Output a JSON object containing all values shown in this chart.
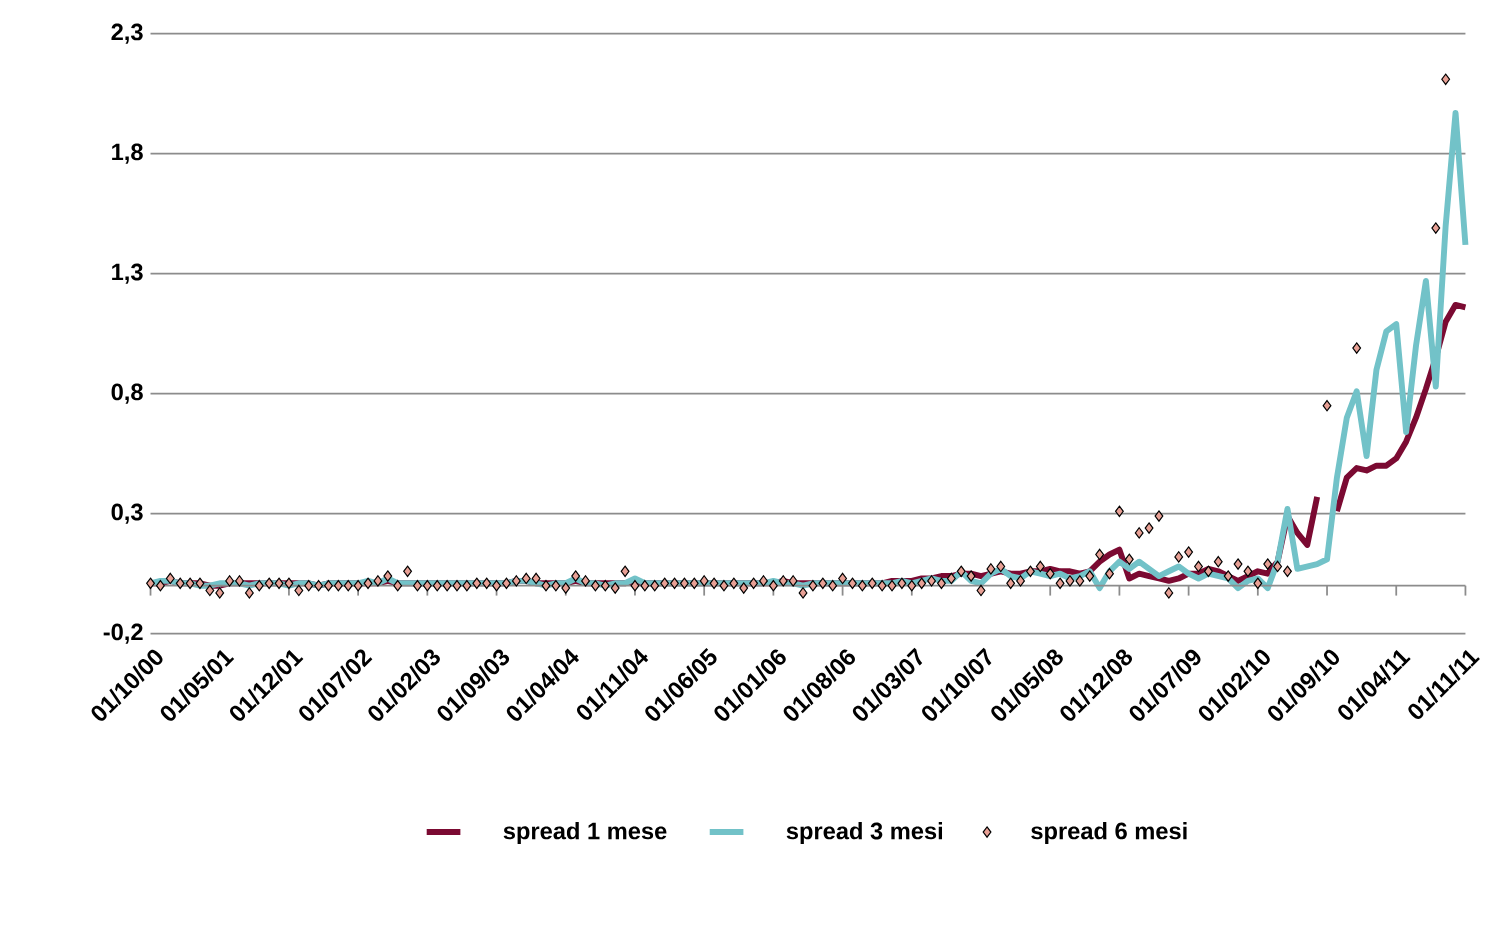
{
  "chart_data": {
    "type": "line",
    "x": [
      "2000-10-01",
      "2000-11-01",
      "2000-12-01",
      "2001-01-01",
      "2001-02-01",
      "2001-03-01",
      "2001-04-01",
      "2001-05-01",
      "2001-06-01",
      "2001-07-01",
      "2001-08-01",
      "2001-09-01",
      "2001-10-01",
      "2001-11-01",
      "2001-12-01",
      "2002-01-01",
      "2002-02-01",
      "2002-03-01",
      "2002-04-01",
      "2002-05-01",
      "2002-06-01",
      "2002-07-01",
      "2002-08-01",
      "2002-09-01",
      "2002-10-01",
      "2002-11-01",
      "2002-12-01",
      "2003-01-01",
      "2003-02-01",
      "2003-03-01",
      "2003-04-01",
      "2003-05-01",
      "2003-06-01",
      "2003-07-01",
      "2003-08-01",
      "2003-09-01",
      "2003-10-01",
      "2003-11-01",
      "2003-12-01",
      "2004-01-01",
      "2004-02-01",
      "2004-03-01",
      "2004-04-01",
      "2004-05-01",
      "2004-06-01",
      "2004-07-01",
      "2004-08-01",
      "2004-09-01",
      "2004-10-01",
      "2004-11-01",
      "2004-12-01",
      "2005-01-01",
      "2005-02-01",
      "2005-03-01",
      "2005-04-01",
      "2005-05-01",
      "2005-06-01",
      "2005-07-01",
      "2005-08-01",
      "2005-09-01",
      "2005-10-01",
      "2005-11-01",
      "2005-12-01",
      "2006-01-01",
      "2006-02-01",
      "2006-03-01",
      "2006-04-01",
      "2006-05-01",
      "2006-06-01",
      "2006-07-01",
      "2006-08-01",
      "2006-09-01",
      "2006-10-01",
      "2006-11-01",
      "2006-12-01",
      "2007-01-01",
      "2007-02-01",
      "2007-03-01",
      "2007-04-01",
      "2007-05-01",
      "2007-06-01",
      "2007-07-01",
      "2007-08-01",
      "2007-09-01",
      "2007-10-01",
      "2007-11-01",
      "2007-12-01",
      "2008-01-01",
      "2008-02-01",
      "2008-03-01",
      "2008-04-01",
      "2008-05-01",
      "2008-06-01",
      "2008-07-01",
      "2008-08-01",
      "2008-09-01",
      "2008-10-01",
      "2008-11-01",
      "2008-12-01",
      "2009-01-01",
      "2009-02-01",
      "2009-03-01",
      "2009-04-01",
      "2009-05-01",
      "2009-06-01",
      "2009-07-01",
      "2009-08-01",
      "2009-09-01",
      "2009-10-01",
      "2009-11-01",
      "2009-12-01",
      "2010-01-01",
      "2010-02-01",
      "2010-03-01",
      "2010-04-01",
      "2010-05-01",
      "2010-06-01",
      "2010-07-01",
      "2010-08-01",
      "2010-09-01",
      "2010-10-01",
      "2010-11-01",
      "2010-12-01",
      "2011-01-01",
      "2011-02-01",
      "2011-03-01",
      "2011-04-01",
      "2011-05-01",
      "2011-06-01",
      "2011-07-01",
      "2011-08-01",
      "2011-09-01",
      "2011-10-01",
      "2011-11-01"
    ],
    "series": [
      {
        "name": "spread 1 mese",
        "color": "#7b0a32",
        "line_style": "solid",
        "marker": "none",
        "values": [
          0.01,
          0.01,
          0.02,
          0.01,
          0.01,
          0.01,
          0.0,
          0.0,
          0.01,
          0.01,
          0.01,
          0.01,
          0.01,
          0.01,
          0.01,
          0.01,
          0.01,
          0.0,
          0.01,
          0.01,
          0.01,
          0.01,
          0.01,
          0.01,
          0.02,
          0.01,
          0.01,
          0.01,
          0.01,
          0.01,
          0.01,
          0.01,
          0.01,
          0.01,
          0.01,
          0.01,
          0.01,
          0.02,
          0.02,
          0.01,
          0.01,
          0.01,
          0.01,
          0.02,
          0.01,
          0.01,
          0.01,
          0.01,
          0.01,
          0.02,
          0.01,
          0.01,
          0.01,
          0.01,
          0.01,
          0.01,
          0.01,
          0.01,
          0.01,
          0.01,
          0.01,
          0.01,
          0.01,
          0.01,
          0.02,
          0.01,
          0.01,
          0.01,
          0.01,
          0.01,
          0.01,
          0.01,
          0.01,
          0.01,
          0.01,
          0.02,
          0.02,
          0.02,
          0.03,
          0.03,
          0.04,
          0.04,
          0.05,
          0.05,
          0.04,
          0.05,
          0.06,
          0.05,
          0.05,
          0.06,
          0.06,
          0.07,
          0.06,
          0.06,
          0.05,
          0.06,
          0.1,
          0.13,
          0.15,
          0.03,
          0.05,
          0.04,
          0.03,
          0.02,
          0.03,
          0.05,
          0.05,
          0.07,
          0.06,
          0.04,
          0.02,
          0.04,
          0.06,
          0.05,
          0.1,
          0.29,
          0.22,
          0.17,
          0.37,
          null,
          0.31,
          0.45,
          0.49,
          0.48,
          0.5,
          0.5,
          0.53,
          0.6,
          0.7,
          0.82,
          0.95,
          1.1,
          1.17,
          1.16
        ]
      },
      {
        "name": "spread 3 mesi",
        "color": "#72c2c8",
        "line_style": "solid",
        "marker": "none",
        "values": [
          0.01,
          0.02,
          0.02,
          0.01,
          0.01,
          0.0,
          0.0,
          0.01,
          0.01,
          0.01,
          0.0,
          0.01,
          0.01,
          0.01,
          0.0,
          0.01,
          0.01,
          0.0,
          0.01,
          0.01,
          0.01,
          0.01,
          0.02,
          0.01,
          0.03,
          0.01,
          0.01,
          0.01,
          0.01,
          0.01,
          0.01,
          0.01,
          0.01,
          0.01,
          0.01,
          0.01,
          0.01,
          0.02,
          0.02,
          0.01,
          0.0,
          0.01,
          0.01,
          0.03,
          0.01,
          0.01,
          0.0,
          0.01,
          0.01,
          0.03,
          0.01,
          0.01,
          0.01,
          0.01,
          0.01,
          0.01,
          0.01,
          0.01,
          0.01,
          0.01,
          0.01,
          0.01,
          0.01,
          0.02,
          0.01,
          0.01,
          0.0,
          0.01,
          0.01,
          0.01,
          0.01,
          0.01,
          0.01,
          0.01,
          0.01,
          0.01,
          0.02,
          0.01,
          0.02,
          0.03,
          0.02,
          0.02,
          0.06,
          0.02,
          0.01,
          0.05,
          0.07,
          0.04,
          0.03,
          0.06,
          0.05,
          0.04,
          0.05,
          0.03,
          0.04,
          0.06,
          -0.01,
          0.06,
          0.1,
          0.07,
          0.1,
          0.07,
          0.04,
          0.06,
          0.08,
          0.05,
          0.03,
          0.05,
          0.04,
          0.03,
          -0.01,
          0.02,
          0.03,
          -0.01,
          0.1,
          0.32,
          0.07,
          0.08,
          0.09,
          0.11,
          0.45,
          0.7,
          0.81,
          0.54,
          0.9,
          1.06,
          1.09,
          0.64,
          1.0,
          1.27,
          0.83,
          1.5,
          1.97,
          1.42
        ]
      },
      {
        "name": "spread 6 mesi",
        "type": "scatter",
        "color": "#e8a095",
        "marker": "diamond",
        "values": [
          0.01,
          0.0,
          0.03,
          0.01,
          0.01,
          0.01,
          -0.02,
          -0.03,
          0.02,
          0.02,
          -0.03,
          0.0,
          0.01,
          0.01,
          0.01,
          -0.02,
          0.0,
          0.0,
          0.0,
          0.0,
          0.0,
          0.0,
          0.01,
          0.02,
          0.04,
          0.0,
          0.06,
          0.0,
          0.0,
          0.0,
          0.0,
          0.0,
          0.0,
          0.01,
          0.01,
          0.0,
          0.01,
          0.02,
          0.03,
          0.03,
          0.0,
          0.0,
          -0.01,
          0.04,
          0.02,
          0.0,
          0.0,
          -0.01,
          0.06,
          0.0,
          0.0,
          0.0,
          0.01,
          0.01,
          0.01,
          0.01,
          0.02,
          0.01,
          0.0,
          0.01,
          -0.01,
          0.01,
          0.02,
          0.0,
          0.02,
          0.02,
          -0.03,
          0.0,
          0.01,
          0.0,
          0.03,
          0.01,
          0.0,
          0.01,
          0.0,
          0.0,
          0.01,
          0.0,
          0.01,
          0.02,
          0.01,
          0.03,
          0.06,
          0.04,
          -0.02,
          0.07,
          0.08,
          0.01,
          0.02,
          0.06,
          0.08,
          0.05,
          0.01,
          0.02,
          0.02,
          0.04,
          0.13,
          0.05,
          0.31,
          0.11,
          0.22,
          0.24,
          0.29,
          -0.03,
          0.12,
          0.14,
          0.08,
          0.06,
          0.1,
          0.04,
          0.09,
          0.06,
          0.01,
          0.09,
          0.08,
          0.06,
          null,
          null,
          null,
          0.75,
          null,
          null,
          0.99,
          null,
          null,
          null,
          null,
          null,
          null,
          null,
          1.49,
          2.11,
          null,
          null
        ]
      }
    ],
    "ylim": [
      -0.2,
      2.3
    ],
    "yticks": [
      {
        "value": -0.2,
        "label": "-0,2"
      },
      {
        "value": 0.3,
        "label": "0,3"
      },
      {
        "value": 0.8,
        "label": "0,8"
      },
      {
        "value": 1.3,
        "label": "1,3"
      },
      {
        "value": 1.8,
        "label": "1,8"
      },
      {
        "value": 2.3,
        "label": "2,3"
      }
    ],
    "xlim": [
      "2000-10-01",
      "2011-11-01"
    ],
    "xticks": [
      {
        "value": "2000-10-01",
        "label": "01/10/00"
      },
      {
        "value": "2001-05-01",
        "label": "01/05/01"
      },
      {
        "value": "2001-12-01",
        "label": "01/12/01"
      },
      {
        "value": "2002-07-01",
        "label": "01/07/02"
      },
      {
        "value": "2003-02-01",
        "label": "01/02/03"
      },
      {
        "value": "2003-09-01",
        "label": "01/09/03"
      },
      {
        "value": "2004-04-01",
        "label": "01/04/04"
      },
      {
        "value": "2004-11-01",
        "label": "01/11/04"
      },
      {
        "value": "2005-06-01",
        "label": "01/06/05"
      },
      {
        "value": "2006-01-01",
        "label": "01/01/06"
      },
      {
        "value": "2006-08-01",
        "label": "01/08/06"
      },
      {
        "value": "2007-03-01",
        "label": "01/03/07"
      },
      {
        "value": "2007-10-01",
        "label": "01/10/07"
      },
      {
        "value": "2008-05-01",
        "label": "01/05/08"
      },
      {
        "value": "2008-12-01",
        "label": "01/12/08"
      },
      {
        "value": "2009-07-01",
        "label": "01/07/09"
      },
      {
        "value": "2010-02-01",
        "label": "01/02/10"
      },
      {
        "value": "2010-09-01",
        "label": "01/09/10"
      },
      {
        "value": "2011-04-01",
        "label": "01/04/11"
      },
      {
        "value": "2011-11-01",
        "label": "01/11/11"
      }
    ],
    "grid": "y",
    "legend": "bottom"
  }
}
